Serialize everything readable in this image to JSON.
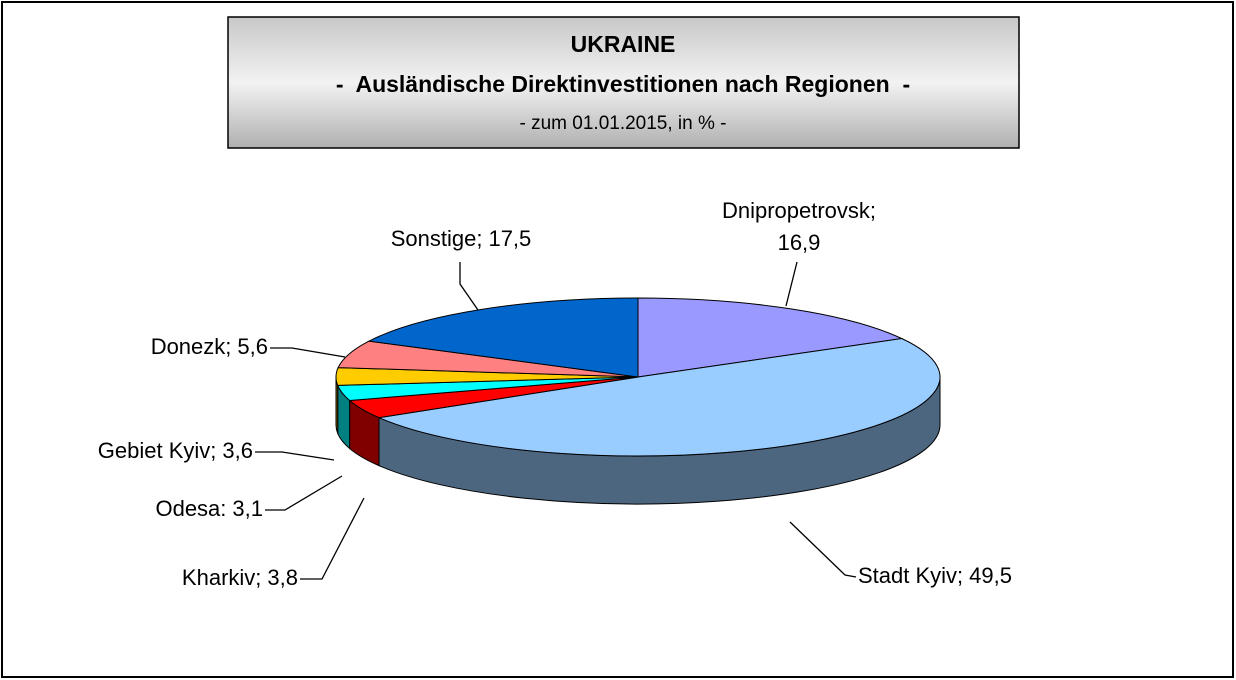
{
  "chart_data": {
    "type": "pie",
    "title": "UKRAINE",
    "subtitle": "-  Ausländische Direktinvestitionen nach Regionen  -",
    "note": "- zum 01.01.2015, in % -",
    "categories": [
      "Dnipropetrovsk;",
      "Stadt Kyiv;",
      "Kharkiv;",
      "Odesa:",
      "Gebiet Kyiv;",
      "Donezk;",
      "Sonstige;"
    ],
    "values": [
      16.9,
      49.5,
      3.8,
      3.1,
      3.6,
      5.6,
      17.5
    ],
    "value_labels": [
      "16,9",
      "49,5",
      "3,8",
      "3,1",
      "3,6",
      "5,6",
      "17,5"
    ],
    "colors": [
      "#9999ff",
      "#99ccff",
      "#ff0000",
      "#00ffff",
      "#ffcc00",
      "#ff8080",
      "#0066cc"
    ],
    "three_d": true
  }
}
